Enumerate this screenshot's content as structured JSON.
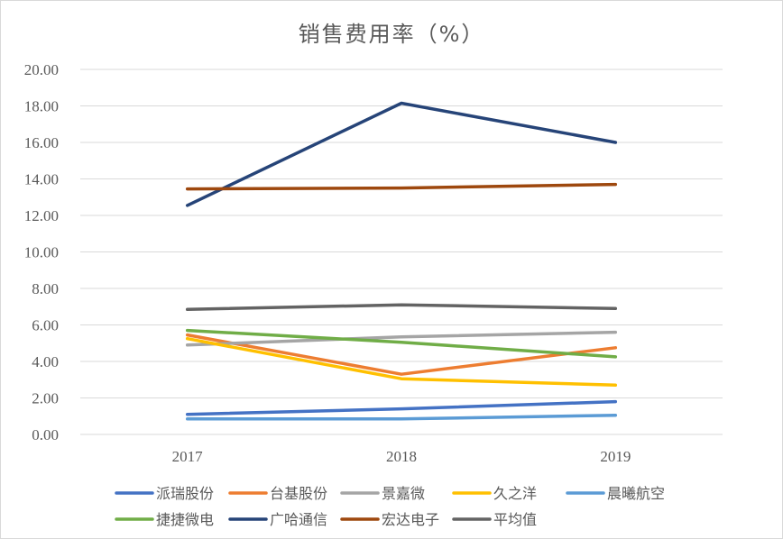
{
  "chart_data": {
    "type": "line",
    "title": "销售费用率（%）",
    "categories": [
      "2017",
      "2018",
      "2019"
    ],
    "ylim": [
      0,
      20
    ],
    "y_ticks": [
      "0.00",
      "2.00",
      "4.00",
      "6.00",
      "8.00",
      "10.00",
      "12.00",
      "14.00",
      "16.00",
      "18.00",
      "20.00"
    ],
    "grid": true,
    "legend_position": "bottom",
    "series": [
      {
        "name": "派瑞股份",
        "color": "#4472C4",
        "values": [
          1.1,
          1.4,
          1.8
        ]
      },
      {
        "name": "台基股份",
        "color": "#ED7D31",
        "values": [
          5.45,
          3.3,
          4.75
        ]
      },
      {
        "name": "景嘉微",
        "color": "#A5A5A5",
        "values": [
          4.9,
          5.35,
          5.6
        ]
      },
      {
        "name": "久之洋",
        "color": "#FFC000",
        "values": [
          5.25,
          3.05,
          2.7
        ]
      },
      {
        "name": "晨曦航空",
        "color": "#5B9BD5",
        "values": [
          0.85,
          0.85,
          1.05
        ]
      },
      {
        "name": "捷捷微电",
        "color": "#70AD47",
        "values": [
          5.7,
          5.05,
          4.25
        ]
      },
      {
        "name": "广哈通信",
        "color": "#264478",
        "values": [
          12.55,
          18.15,
          16.0
        ]
      },
      {
        "name": "宏达电子",
        "color": "#9E480E",
        "values": [
          13.45,
          13.5,
          13.7
        ]
      },
      {
        "name": "平均值",
        "color": "#636363",
        "values": [
          6.85,
          7.1,
          6.9
        ]
      }
    ]
  }
}
